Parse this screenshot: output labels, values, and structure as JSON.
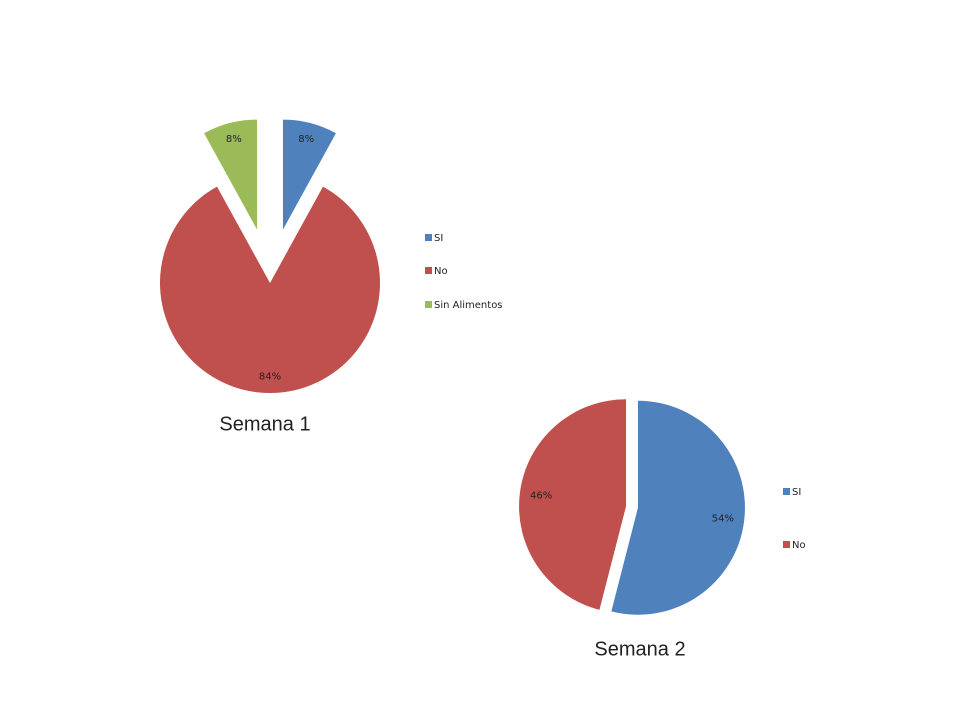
{
  "chart_data": [
    {
      "type": "pie",
      "title": "Semana 1",
      "categories": [
        "SI",
        "No",
        "Sin Alimentos"
      ],
      "values": [
        8,
        84,
        8
      ],
      "value_labels": [
        "8%",
        "84%",
        "8%"
      ],
      "colors": [
        "#4f81bd",
        "#c0504d",
        "#9bbb59"
      ]
    },
    {
      "type": "pie",
      "title": "Semana 2",
      "categories": [
        "SI",
        "No"
      ],
      "values": [
        54,
        46
      ],
      "value_labels": [
        "54%",
        "46%"
      ],
      "colors": [
        "#4f81bd",
        "#c0504d"
      ]
    }
  ]
}
